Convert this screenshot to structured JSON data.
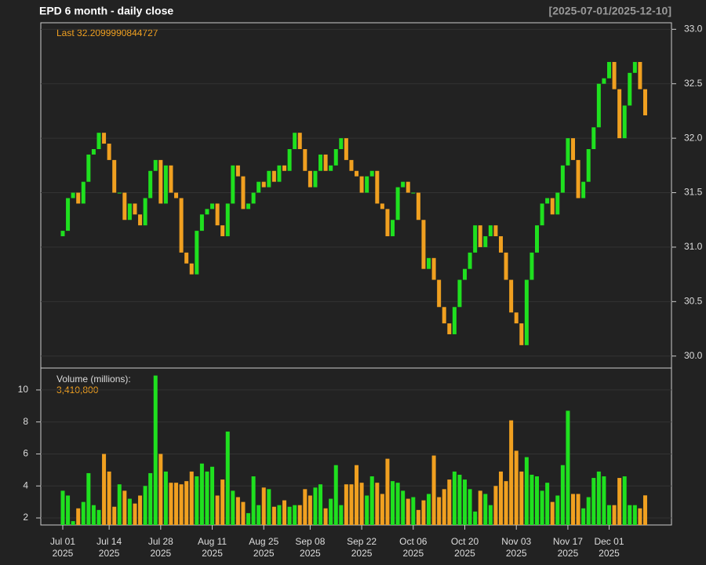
{
  "chart_data": [
    {
      "type": "candlestick",
      "title": "EPD  6 month - daily close",
      "subtitle": "[2025-07-01/2025-12-10]",
      "annotation": "Last 32.2099990844727",
      "up_color": "#1fe01f",
      "down_color": "#f0a020",
      "xlim": [
        -4.26,
        118.1
      ],
      "ylim": [
        29.89,
        33.06
      ],
      "yticks": [
        {
          "value": 30,
          "label": "30.0"
        },
        {
          "value": 30.5,
          "label": "30.5"
        },
        {
          "value": 31,
          "label": "31.0"
        },
        {
          "value": 31.5,
          "label": "31.5"
        },
        {
          "value": 32,
          "label": "32.0"
        },
        {
          "value": 32.5,
          "label": "32.5"
        },
        {
          "value": 33,
          "label": "33.0"
        }
      ],
      "grid": true,
      "xticks": [
        {
          "value": 0,
          "label": "Jul 01"
        },
        {
          "value": 9,
          "label": "Jul 14"
        },
        {
          "value": 19,
          "label": "Jul 28"
        },
        {
          "value": 29,
          "label": "Aug 11"
        },
        {
          "value": 39,
          "label": "Aug 25"
        },
        {
          "value": 48,
          "label": "Sep 08"
        },
        {
          "value": 58,
          "label": "Sep 22"
        },
        {
          "value": 68,
          "label": "Oct 06"
        },
        {
          "value": 78,
          "label": "Oct 20"
        },
        {
          "value": 88,
          "label": "Nov 03"
        },
        {
          "value": 98,
          "label": "Nov 17"
        },
        {
          "value": 106,
          "label": "Dec 01"
        }
      ],
      "x_tick_year": "2025",
      "open": [
        31.1,
        31.15,
        31.45,
        31.5,
        31.4,
        31.6,
        31.85,
        31.9,
        32.05,
        31.95,
        31.8,
        31.5,
        31.5,
        31.25,
        31.4,
        31.3,
        31.2,
        31.45,
        31.7,
        31.8,
        31.4,
        31.75,
        31.5,
        31.45,
        30.95,
        30.85,
        30.75,
        31.15,
        31.3,
        31.35,
        31.4,
        31.2,
        31.1,
        31.4,
        31.75,
        31.65,
        31.35,
        31.4,
        31.5,
        31.6,
        31.55,
        31.7,
        31.6,
        31.75,
        31.7,
        31.9,
        32.05,
        31.9,
        31.7,
        31.55,
        31.7,
        31.85,
        31.7,
        31.75,
        31.9,
        32.0,
        31.8,
        31.7,
        31.65,
        31.5,
        31.65,
        31.7,
        31.4,
        31.35,
        31.1,
        31.25,
        31.55,
        31.6,
        31.5,
        31.5,
        31.25,
        30.8,
        30.9,
        30.7,
        30.45,
        30.3,
        30.2,
        30.45,
        30.7,
        30.8,
        30.95,
        31.2,
        31.0,
        31.1,
        31.2,
        31.1,
        30.95,
        30.7,
        30.4,
        30.3,
        30.1,
        30.7,
        30.95,
        31.2,
        31.4,
        31.45,
        31.3,
        31.5,
        31.75,
        32.0,
        31.8,
        31.45,
        31.6,
        31.9,
        32.1,
        32.5,
        32.55,
        32.7,
        32.45,
        32.0,
        32.3,
        32.6,
        32.7,
        32.45
      ],
      "close": [
        31.15,
        31.45,
        31.5,
        31.4,
        31.6,
        31.85,
        31.9,
        32.05,
        31.95,
        31.8,
        31.5,
        31.5,
        31.25,
        31.4,
        31.3,
        31.2,
        31.45,
        31.7,
        31.8,
        31.4,
        31.75,
        31.5,
        31.45,
        30.95,
        30.85,
        30.75,
        31.15,
        31.3,
        31.35,
        31.4,
        31.2,
        31.1,
        31.4,
        31.75,
        31.65,
        31.35,
        31.4,
        31.5,
        31.6,
        31.55,
        31.7,
        31.6,
        31.75,
        31.7,
        31.9,
        32.05,
        31.9,
        31.7,
        31.55,
        31.7,
        31.85,
        31.7,
        31.75,
        31.9,
        32.0,
        31.8,
        31.7,
        31.65,
        31.5,
        31.65,
        31.7,
        31.4,
        31.35,
        31.1,
        31.25,
        31.55,
        31.6,
        31.5,
        31.5,
        31.25,
        30.8,
        30.9,
        30.7,
        30.45,
        30.3,
        30.2,
        30.45,
        30.7,
        30.8,
        30.95,
        31.2,
        31.0,
        31.1,
        31.2,
        31.1,
        30.95,
        30.7,
        30.4,
        30.3,
        30.1,
        30.7,
        30.95,
        31.2,
        31.4,
        31.45,
        31.3,
        31.5,
        31.75,
        32.0,
        31.8,
        31.45,
        31.6,
        31.9,
        32.1,
        32.5,
        32.55,
        32.7,
        32.45,
        32.0,
        32.3,
        32.6,
        32.7,
        32.45,
        32.21
      ]
    },
    {
      "type": "bar",
      "title": "Volume (millions):",
      "annotation": "3,410,800",
      "xlim": [
        -4.26,
        118.1
      ],
      "ylim": [
        1.56,
        11.37
      ],
      "yticks": [
        2,
        4,
        6,
        8,
        10
      ],
      "grid": true,
      "values": [
        3.7,
        3.4,
        1.8,
        2.6,
        3.0,
        4.8,
        2.8,
        2.5,
        6.0,
        4.9,
        2.7,
        4.1,
        3.7,
        3.2,
        2.9,
        3.4,
        4.0,
        4.8,
        10.9,
        6.0,
        4.9,
        4.2,
        4.2,
        4.1,
        4.3,
        4.9,
        4.6,
        5.4,
        4.9,
        5.2,
        3.4,
        4.4,
        7.4,
        3.7,
        3.3,
        3.0,
        2.3,
        4.6,
        2.8,
        3.9,
        3.8,
        2.7,
        2.8,
        3.1,
        2.7,
        2.8,
        2.8,
        3.8,
        3.4,
        3.9,
        4.1,
        2.6,
        3.2,
        5.3,
        2.8,
        4.1,
        4.1,
        5.3,
        4.2,
        3.4,
        4.6,
        4.2,
        3.5,
        5.7,
        4.3,
        4.2,
        3.7,
        3.2,
        3.3,
        2.5,
        3.1,
        3.5,
        5.9,
        3.3,
        3.8,
        4.4,
        4.9,
        4.7,
        4.4,
        3.8,
        2.4,
        3.7,
        3.5,
        2.8,
        4.0,
        4.9,
        4.3,
        8.1,
        6.2,
        4.9,
        5.8,
        4.7,
        4.6,
        3.7,
        4.2,
        3.0,
        3.4,
        5.3,
        8.7,
        3.5,
        3.5,
        2.6,
        3.3,
        4.5,
        4.9,
        4.6,
        2.8,
        2.8,
        4.5,
        4.6,
        2.8,
        2.8,
        2.6,
        3.4108
      ]
    }
  ]
}
